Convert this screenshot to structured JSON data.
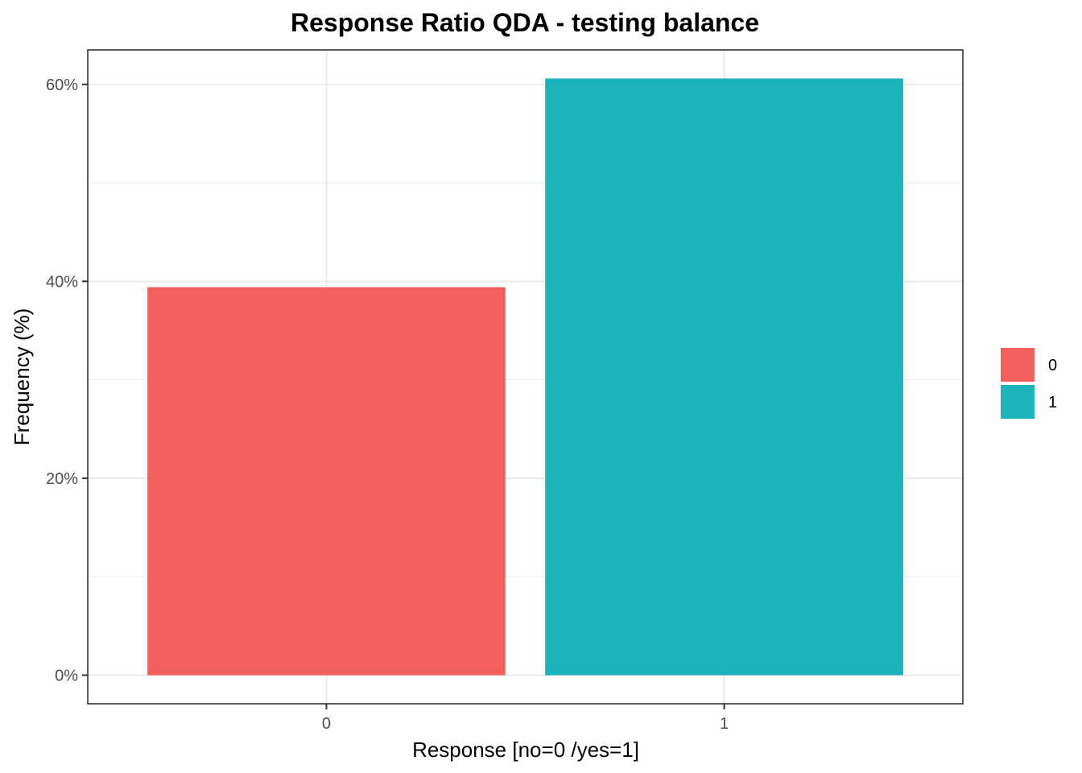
{
  "chart_data": {
    "type": "bar",
    "title": "Response Ratio QDA - testing balance",
    "xlabel": "Response [no=0 /yes=1]",
    "ylabel": "Frequency (%)",
    "categories": [
      "0",
      "1"
    ],
    "values": [
      39.4,
      60.6
    ],
    "ylim": [
      -2.9,
      63.5
    ],
    "y_ticks": [
      0,
      20,
      40,
      60
    ],
    "y_tick_labels": [
      "0%",
      "20%",
      "40%",
      "60%"
    ],
    "y_minor_ticks": [
      10,
      30,
      50
    ],
    "grid": true,
    "legend": {
      "position": "right",
      "items": [
        {
          "label": "0",
          "color": "#F8766D"
        },
        {
          "label": "1",
          "color": "#00BFC4"
        }
      ]
    },
    "colors": [
      "#F3605C",
      "#1AB3B9"
    ]
  }
}
